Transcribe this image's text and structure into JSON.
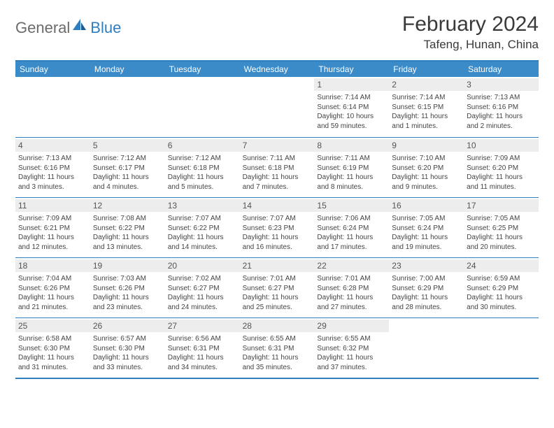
{
  "brand": {
    "general": "General",
    "blue": "Blue"
  },
  "title": "February 2024",
  "location": "Tafeng, Hunan, China",
  "weekdays": [
    "Sunday",
    "Monday",
    "Tuesday",
    "Wednesday",
    "Thursday",
    "Friday",
    "Saturday"
  ],
  "colors": {
    "header_bg": "#3b8bc9",
    "border": "#2f7ec0",
    "daynum_bg": "#ededed",
    "text": "#444444"
  },
  "weeks": [
    [
      null,
      null,
      null,
      null,
      {
        "n": "1",
        "sunrise": "7:14 AM",
        "sunset": "6:14 PM",
        "day_h": "10",
        "day_m": "59"
      },
      {
        "n": "2",
        "sunrise": "7:14 AM",
        "sunset": "6:15 PM",
        "day_h": "11",
        "day_m": "1"
      },
      {
        "n": "3",
        "sunrise": "7:13 AM",
        "sunset": "6:16 PM",
        "day_h": "11",
        "day_m": "2"
      }
    ],
    [
      {
        "n": "4",
        "sunrise": "7:13 AM",
        "sunset": "6:16 PM",
        "day_h": "11",
        "day_m": "3"
      },
      {
        "n": "5",
        "sunrise": "7:12 AM",
        "sunset": "6:17 PM",
        "day_h": "11",
        "day_m": "4"
      },
      {
        "n": "6",
        "sunrise": "7:12 AM",
        "sunset": "6:18 PM",
        "day_h": "11",
        "day_m": "5"
      },
      {
        "n": "7",
        "sunrise": "7:11 AM",
        "sunset": "6:18 PM",
        "day_h": "11",
        "day_m": "7"
      },
      {
        "n": "8",
        "sunrise": "7:11 AM",
        "sunset": "6:19 PM",
        "day_h": "11",
        "day_m": "8"
      },
      {
        "n": "9",
        "sunrise": "7:10 AM",
        "sunset": "6:20 PM",
        "day_h": "11",
        "day_m": "9"
      },
      {
        "n": "10",
        "sunrise": "7:09 AM",
        "sunset": "6:20 PM",
        "day_h": "11",
        "day_m": "11"
      }
    ],
    [
      {
        "n": "11",
        "sunrise": "7:09 AM",
        "sunset": "6:21 PM",
        "day_h": "11",
        "day_m": "12"
      },
      {
        "n": "12",
        "sunrise": "7:08 AM",
        "sunset": "6:22 PM",
        "day_h": "11",
        "day_m": "13"
      },
      {
        "n": "13",
        "sunrise": "7:07 AM",
        "sunset": "6:22 PM",
        "day_h": "11",
        "day_m": "14"
      },
      {
        "n": "14",
        "sunrise": "7:07 AM",
        "sunset": "6:23 PM",
        "day_h": "11",
        "day_m": "16"
      },
      {
        "n": "15",
        "sunrise": "7:06 AM",
        "sunset": "6:24 PM",
        "day_h": "11",
        "day_m": "17"
      },
      {
        "n": "16",
        "sunrise": "7:05 AM",
        "sunset": "6:24 PM",
        "day_h": "11",
        "day_m": "19"
      },
      {
        "n": "17",
        "sunrise": "7:05 AM",
        "sunset": "6:25 PM",
        "day_h": "11",
        "day_m": "20"
      }
    ],
    [
      {
        "n": "18",
        "sunrise": "7:04 AM",
        "sunset": "6:26 PM",
        "day_h": "11",
        "day_m": "21"
      },
      {
        "n": "19",
        "sunrise": "7:03 AM",
        "sunset": "6:26 PM",
        "day_h": "11",
        "day_m": "23"
      },
      {
        "n": "20",
        "sunrise": "7:02 AM",
        "sunset": "6:27 PM",
        "day_h": "11",
        "day_m": "24"
      },
      {
        "n": "21",
        "sunrise": "7:01 AM",
        "sunset": "6:27 PM",
        "day_h": "11",
        "day_m": "25"
      },
      {
        "n": "22",
        "sunrise": "7:01 AM",
        "sunset": "6:28 PM",
        "day_h": "11",
        "day_m": "27"
      },
      {
        "n": "23",
        "sunrise": "7:00 AM",
        "sunset": "6:29 PM",
        "day_h": "11",
        "day_m": "28"
      },
      {
        "n": "24",
        "sunrise": "6:59 AM",
        "sunset": "6:29 PM",
        "day_h": "11",
        "day_m": "30"
      }
    ],
    [
      {
        "n": "25",
        "sunrise": "6:58 AM",
        "sunset": "6:30 PM",
        "day_h": "11",
        "day_m": "31"
      },
      {
        "n": "26",
        "sunrise": "6:57 AM",
        "sunset": "6:30 PM",
        "day_h": "11",
        "day_m": "33"
      },
      {
        "n": "27",
        "sunrise": "6:56 AM",
        "sunset": "6:31 PM",
        "day_h": "11",
        "day_m": "34"
      },
      {
        "n": "28",
        "sunrise": "6:55 AM",
        "sunset": "6:31 PM",
        "day_h": "11",
        "day_m": "35"
      },
      {
        "n": "29",
        "sunrise": "6:55 AM",
        "sunset": "6:32 PM",
        "day_h": "11",
        "day_m": "37"
      },
      null,
      null
    ]
  ],
  "labels": {
    "sunrise": "Sunrise:",
    "sunset": "Sunset:",
    "daylight": "Daylight:",
    "hours": "hours",
    "and": "and",
    "minutes": "minutes."
  }
}
